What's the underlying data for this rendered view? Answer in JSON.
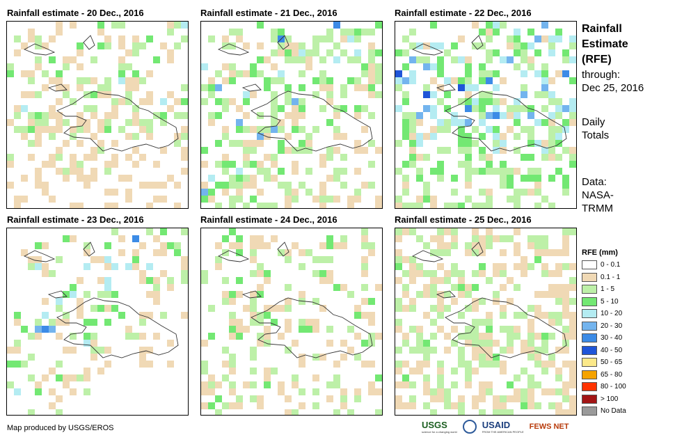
{
  "panels": [
    {
      "title": "Rainfall estimate - 20 Dec., 2016",
      "pattern": "d20"
    },
    {
      "title": "Rainfall estimate - 21 Dec., 2016",
      "pattern": "d21"
    },
    {
      "title": "Rainfall estimate - 22 Dec., 2016",
      "pattern": "d22"
    },
    {
      "title": "Rainfall estimate - 23 Dec., 2016",
      "pattern": "d23"
    },
    {
      "title": "Rainfall estimate - 24 Dec., 2016",
      "pattern": "d24"
    },
    {
      "title": "Rainfall estimate - 25 Dec., 2016",
      "pattern": "d25"
    }
  ],
  "side": {
    "title_line1": "Rainfall",
    "title_line2": "Estimate",
    "title_line3": "(RFE)",
    "through_label": "through:",
    "through_date": "Dec 25, 2016",
    "totals_line1": "Daily",
    "totals_line2": "Totals",
    "data_line1": "Data:",
    "data_line2": "NASA-",
    "data_line3": "TRMM"
  },
  "legend": {
    "title": "RFE (mm)",
    "items": [
      {
        "label": "0 - 0.1",
        "color": "#ffffff"
      },
      {
        "label": "0.1 - 1",
        "color": "#f0d9b5"
      },
      {
        "label": "1 - 5",
        "color": "#bdf0a8"
      },
      {
        "label": "5 - 10",
        "color": "#73e873"
      },
      {
        "label": "10 - 20",
        "color": "#b4ecf2"
      },
      {
        "label": "20 - 30",
        "color": "#73b4ee"
      },
      {
        "label": "30 - 40",
        "color": "#3c8be6"
      },
      {
        "label": "40 - 50",
        "color": "#1f55d8"
      },
      {
        "label": "50 - 65",
        "color": "#fce98a"
      },
      {
        "label": "65 - 80",
        "color": "#f5a300"
      },
      {
        "label": "80 - 100",
        "color": "#ff3300"
      },
      {
        "label": "> 100",
        "color": "#a31515"
      },
      {
        "label": "No Data",
        "color": "#9a9a9a"
      }
    ]
  },
  "footer": {
    "credit": "Map produced by USGS/EROS"
  },
  "logos": {
    "usgs": "USGS",
    "usgs_tagline": "science for a changing world",
    "usaid": "USAID",
    "usaid_tagline": "FROM THE AMERICAN PEOPLE",
    "fews": "FEWS NET"
  }
}
